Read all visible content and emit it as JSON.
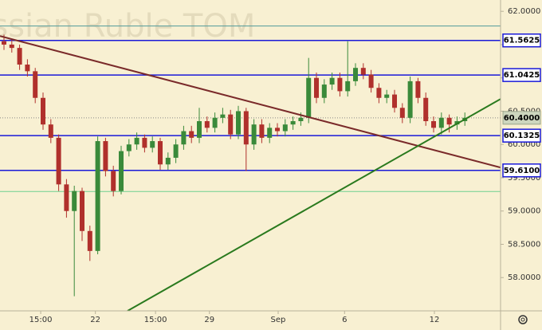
{
  "chart_data": {
    "type": "candlestick",
    "title": "Russian Ruble TOM",
    "background": "#f8f0d2",
    "up_color": "#3a8a3a",
    "down_color": "#b0302c",
    "xlim": [
      -0.51,
      63.57
    ],
    "ylim": [
      57.5,
      62.17
    ],
    "xticks": [
      {
        "value": 4.7,
        "label": "15:00"
      },
      {
        "value": 11.7,
        "label": "22"
      },
      {
        "value": 19.4,
        "label": "15:00"
      },
      {
        "value": 26.3,
        "label": "29"
      },
      {
        "value": 35.1,
        "label": "Sep"
      },
      {
        "value": 43.6,
        "label": "6"
      },
      {
        "value": 55.1,
        "label": "12"
      }
    ],
    "yticks": [
      {
        "value": 58,
        "label": "58.0000"
      },
      {
        "value": 58.5,
        "label": "58.5000"
      },
      {
        "value": 59,
        "label": "59.0000"
      },
      {
        "value": 59.5,
        "label": "59.5000"
      },
      {
        "value": 60,
        "label": "60.0000"
      },
      {
        "value": 60.5,
        "label": "60.5000"
      },
      {
        "value": 61,
        "label": "61.0000"
      },
      {
        "value": 61.5,
        "label": "61.5000"
      },
      {
        "value": 62,
        "label": "62.0000"
      }
    ],
    "open": [
      61.55,
      61.5,
      61.45,
      61.2,
      61.1,
      60.7,
      60.3,
      60.1,
      59.4,
      59.0,
      59.3,
      58.7,
      58.4,
      60.05,
      59.6,
      59.3,
      59.9,
      60.0,
      60.1,
      59.95,
      60.05,
      59.7,
      59.8,
      60.0,
      60.2,
      60.1,
      60.35,
      60.25,
      60.4,
      60.45,
      60.15,
      60.5,
      60.0,
      60.3,
      60.1,
      60.25,
      60.2,
      60.3,
      60.35,
      60.4,
      61.0,
      60.7,
      60.9,
      61.0,
      60.8,
      60.95,
      61.15,
      61.05,
      60.85,
      60.7,
      60.75,
      60.55,
      60.4,
      60.95,
      60.7,
      60.35,
      60.25,
      60.4,
      60.3,
      60.35
    ],
    "high": [
      61.65,
      61.58,
      61.5,
      61.28,
      61.15,
      60.78,
      60.38,
      60.15,
      59.48,
      59.38,
      59.35,
      58.78,
      60.12,
      60.1,
      59.68,
      59.98,
      60.08,
      60.18,
      60.15,
      60.12,
      60.1,
      59.88,
      60.08,
      60.28,
      60.28,
      60.55,
      60.42,
      60.48,
      60.55,
      60.52,
      60.58,
      60.55,
      60.38,
      60.38,
      60.32,
      60.32,
      60.38,
      60.42,
      60.48,
      61.3,
      61.08,
      60.98,
      61.08,
      61.08,
      61.55,
      61.22,
      61.22,
      61.12,
      60.92,
      60.82,
      60.82,
      60.62,
      61.02,
      61.0,
      60.78,
      60.42,
      60.48,
      60.45,
      60.42,
      60.48
    ],
    "low": [
      61.42,
      61.38,
      61.12,
      61.02,
      60.62,
      60.22,
      60.02,
      59.3,
      58.9,
      57.72,
      58.55,
      58.25,
      58.35,
      59.52,
      59.22,
      59.25,
      59.82,
      59.92,
      59.88,
      59.88,
      59.62,
      59.62,
      59.72,
      59.92,
      60.02,
      60.02,
      60.18,
      60.18,
      60.32,
      60.08,
      60.08,
      59.6,
      59.92,
      60.02,
      60.02,
      60.12,
      60.12,
      60.22,
      60.28,
      60.32,
      60.62,
      60.62,
      60.82,
      60.72,
      60.72,
      60.88,
      60.98,
      60.78,
      60.62,
      60.62,
      60.48,
      60.32,
      60.32,
      60.62,
      60.28,
      60.18,
      60.15,
      60.18,
      60.22,
      60.28
    ],
    "close": [
      61.5,
      61.45,
      61.2,
      61.1,
      60.7,
      60.3,
      60.1,
      59.4,
      59.0,
      59.3,
      58.7,
      58.4,
      60.05,
      59.6,
      59.3,
      59.9,
      60.0,
      60.1,
      59.95,
      60.05,
      59.7,
      59.8,
      60.0,
      60.2,
      60.1,
      60.35,
      60.25,
      60.4,
      60.45,
      60.15,
      60.5,
      60.0,
      60.3,
      60.1,
      60.25,
      60.2,
      60.3,
      60.35,
      60.4,
      61.0,
      60.7,
      60.9,
      61.0,
      60.8,
      60.95,
      61.15,
      61.05,
      60.85,
      60.7,
      60.75,
      60.55,
      60.4,
      60.95,
      60.7,
      60.35,
      60.25,
      60.4,
      60.3,
      60.35,
      60.4
    ],
    "levels": {
      "values": [
        61.5625,
        61.0425,
        60.1325,
        59.61
      ],
      "value_labels": [
        "61.5625",
        "61.0425",
        "60.1325",
        "59.6100"
      ],
      "color": "#1a1ad8"
    },
    "last_price": {
      "value": 60.4,
      "label": "60.4000",
      "color": "#cdd6be"
    },
    "thin_lines": [
      {
        "value": 61.78,
        "color": "#4f9a9a"
      },
      {
        "value": 59.293,
        "color": "#6fd08f"
      }
    ],
    "trendlines": [
      {
        "color": "#7a2a2a",
        "x": [
          -0.51,
          63.57
        ],
        "values": [
          61.629,
          59.653
        ]
      },
      {
        "color": "#2a7a1e",
        "x": [
          15.82,
          63.57
        ],
        "values": [
          57.5,
          60.683
        ]
      }
    ]
  }
}
